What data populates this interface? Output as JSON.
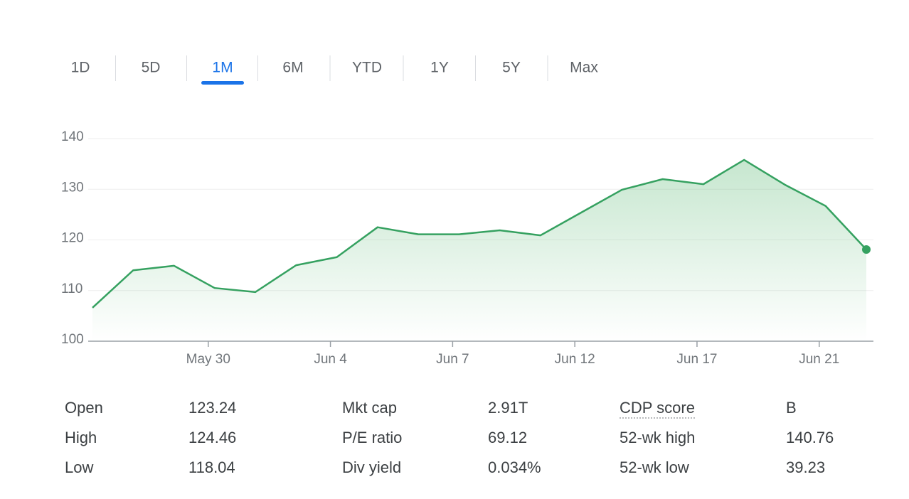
{
  "tabs": {
    "items": [
      "1D",
      "5D",
      "1M",
      "6M",
      "YTD",
      "1Y",
      "5Y",
      "Max"
    ],
    "selected": 2
  },
  "chart_data": {
    "type": "line",
    "categories": [
      null,
      null,
      null,
      "May 30",
      null,
      null,
      "Jun 4",
      null,
      null,
      "Jun 7",
      null,
      null,
      "Jun 12",
      null,
      null,
      "Jun 17",
      null,
      null,
      "Jun 21",
      null
    ],
    "series": [
      {
        "color": "#35a160",
        "values": [
          106.6,
          114.0,
          114.9,
          110.5,
          109.7,
          115.0,
          116.6,
          122.5,
          121.1,
          121.1,
          121.9,
          120.9,
          125.4,
          129.9,
          132.0,
          131.0,
          135.8,
          130.9,
          126.7,
          118.1
        ]
      }
    ],
    "ylim": [
      100,
      140
    ],
    "yticks": [
      100,
      110,
      120,
      130,
      140
    ],
    "grid": true
  },
  "stats": {
    "rows": [
      [
        "Open",
        "123.24",
        "Mkt cap",
        "2.91T",
        "CDP score",
        "B"
      ],
      [
        "High",
        "124.46",
        "P/E ratio",
        "69.12",
        "52-wk high",
        "140.76"
      ],
      [
        "Low",
        "118.04",
        "Div yield",
        "0.034%",
        "52-wk low",
        "39.23"
      ]
    ]
  }
}
